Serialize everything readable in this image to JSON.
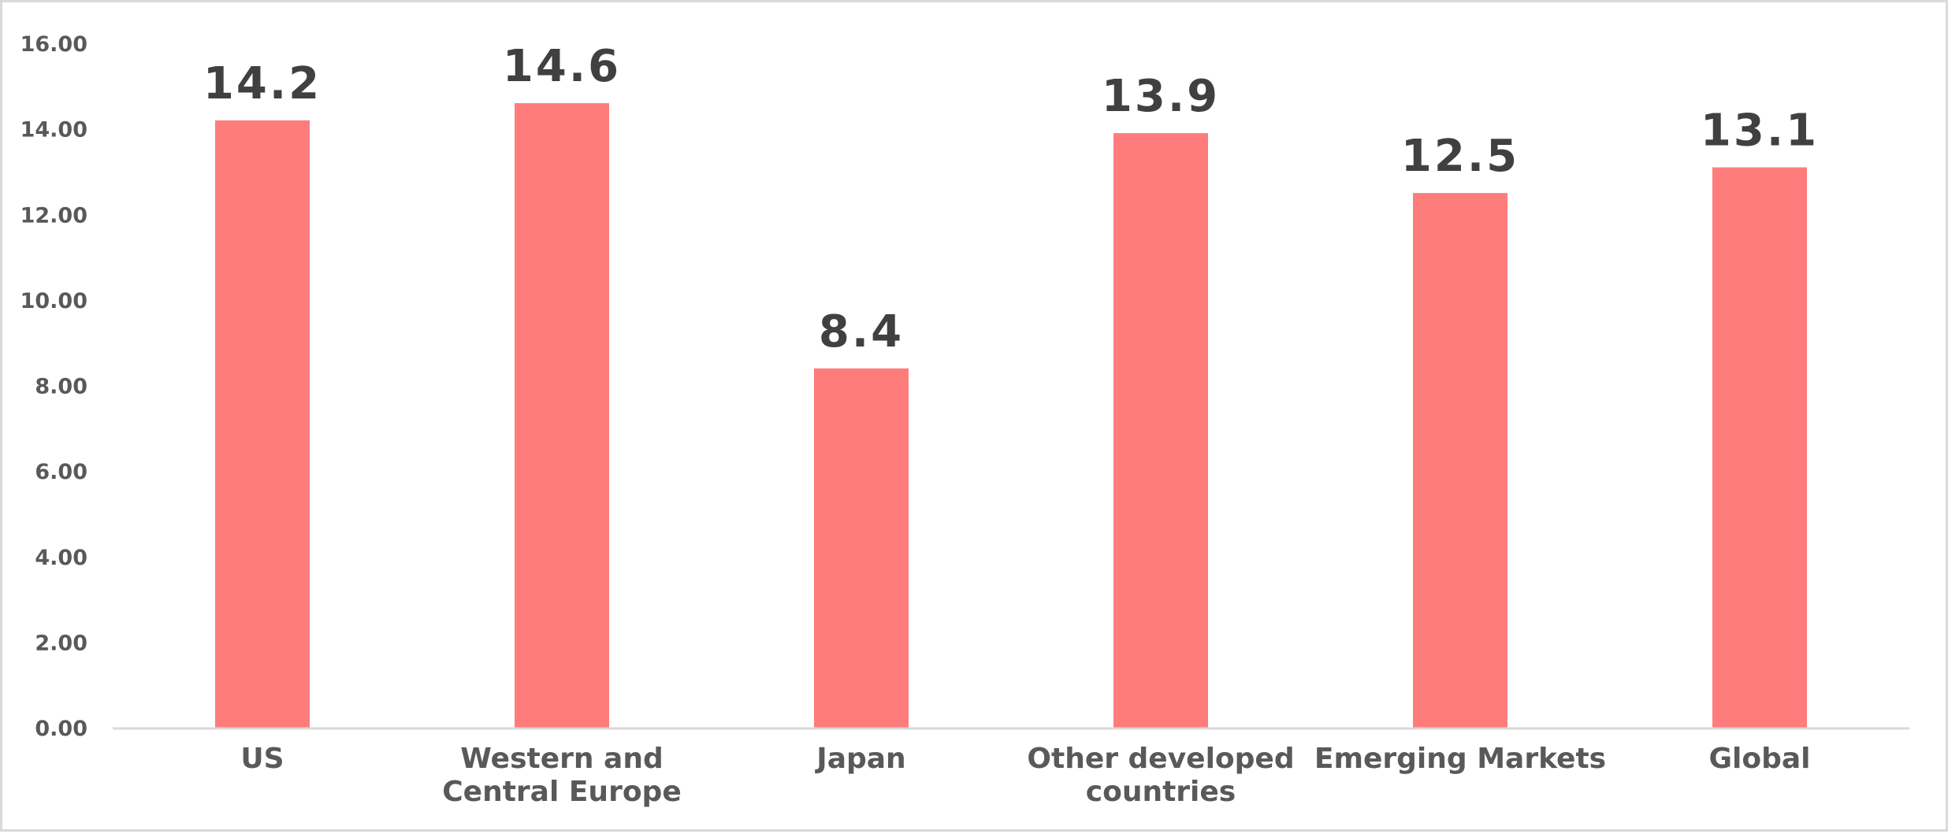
{
  "chart_data": {
    "type": "bar",
    "title": "",
    "xlabel": "",
    "ylabel": "",
    "categories": [
      [
        "US"
      ],
      [
        "Western and",
        "Central Europe"
      ],
      [
        "Japan"
      ],
      [
        "Other developed",
        "countries"
      ],
      [
        "Emerging Markets"
      ],
      [
        "Global"
      ]
    ],
    "values": [
      14.2,
      14.6,
      8.4,
      13.9,
      12.5,
      13.1
    ],
    "data_labels": [
      "14.2",
      "14.6",
      "8.4",
      "13.9",
      "12.5",
      "13.1"
    ],
    "ylim": [
      0,
      16
    ],
    "yticks": [
      0,
      2,
      4,
      6,
      8,
      10,
      12,
      14,
      16
    ],
    "ytick_labels": [
      "0.00",
      "2.00",
      "4.00",
      "6.00",
      "8.00",
      "10.00",
      "12.00",
      "14.00",
      "16.00"
    ],
    "grid": false,
    "legend": "none",
    "bar_color": "#ff7c7c",
    "axis_color": "#d9d9d9"
  }
}
